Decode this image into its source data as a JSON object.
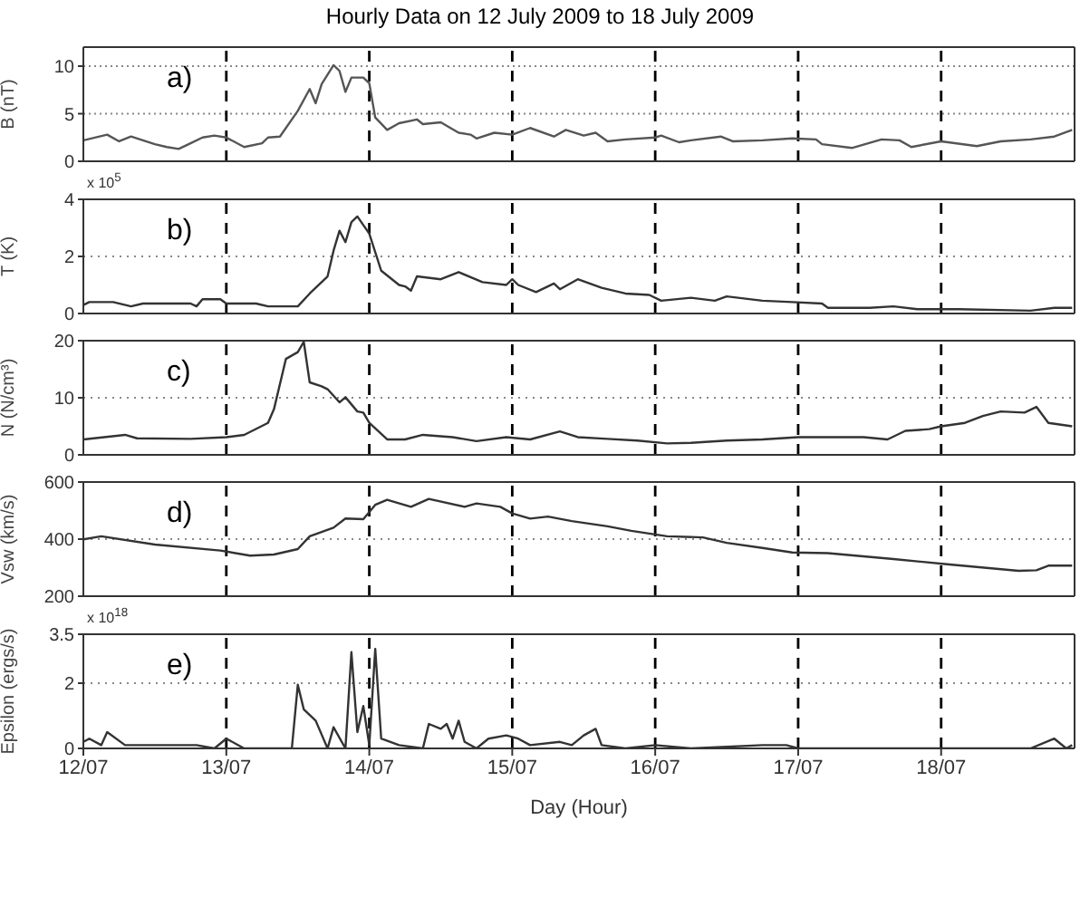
{
  "chart_data": [
    {
      "type": "line",
      "title": "Hourly Data on 12 July 2009 to 18 July 2009",
      "ylabel": "B (nT)",
      "annotations": [
        "a)"
      ],
      "color": "#555555",
      "grid": "y",
      "tick_labels": "y",
      "xlim": [
        "2009-07-12T00:00",
        "2009-07-18T22:24"
      ],
      "ylim": [
        0,
        12
      ],
      "yticks": [
        0,
        5,
        10
      ],
      "ref_lines": [
        {
          "axis": "x",
          "value": "2009-07-13T00:00",
          "color": "#000000",
          "line_style": "dashed"
        },
        {
          "axis": "x",
          "value": "2009-07-14T00:00",
          "color": "#000000",
          "line_style": "dashed"
        },
        {
          "axis": "x",
          "value": "2009-07-15T00:00",
          "color": "#000000",
          "line_style": "dashed"
        },
        {
          "axis": "x",
          "value": "2009-07-16T00:00",
          "color": "#000000",
          "line_style": "dashed"
        },
        {
          "axis": "x",
          "value": "2009-07-17T00:00",
          "color": "#000000",
          "line_style": "dashed"
        },
        {
          "axis": "x",
          "value": "2009-07-18T00:00",
          "color": "#000000",
          "line_style": "dashed"
        }
      ],
      "x": [
        "2009-07-12T00:00",
        "2009-07-12T04:00",
        "2009-07-12T06:00",
        "2009-07-12T08:00",
        "2009-07-12T12:00",
        "2009-07-12T14:00",
        "2009-07-12T16:00",
        "2009-07-12T18:00",
        "2009-07-12T20:00",
        "2009-07-12T22:00",
        "2009-07-13T00:00",
        "2009-07-13T03:00",
        "2009-07-13T06:00",
        "2009-07-13T07:00",
        "2009-07-13T09:00",
        "2009-07-13T12:00",
        "2009-07-13T14:00",
        "2009-07-13T15:00",
        "2009-07-13T16:00",
        "2009-07-13T18:00",
        "2009-07-13T19:00",
        "2009-07-13T20:00",
        "2009-07-13T21:00",
        "2009-07-13T23:00",
        "2009-07-14T00:00",
        "2009-07-14T01:00",
        "2009-07-14T03:00",
        "2009-07-14T05:00",
        "2009-07-14T08:00",
        "2009-07-14T09:00",
        "2009-07-14T12:00",
        "2009-07-14T15:00",
        "2009-07-14T17:00",
        "2009-07-14T18:00",
        "2009-07-14T21:00",
        "2009-07-15T00:00",
        "2009-07-15T03:00",
        "2009-07-15T07:00",
        "2009-07-15T09:00",
        "2009-07-15T12:00",
        "2009-07-15T14:00",
        "2009-07-15T16:00",
        "2009-07-15T19:00",
        "2009-07-16T00:00",
        "2009-07-16T01:00",
        "2009-07-16T04:00",
        "2009-07-16T06:00",
        "2009-07-16T11:00",
        "2009-07-16T13:00",
        "2009-07-16T18:00",
        "2009-07-16T23:00",
        "2009-07-17T03:00",
        "2009-07-17T04:00",
        "2009-07-17T09:00",
        "2009-07-17T14:00",
        "2009-07-17T17:00",
        "2009-07-17T19:00",
        "2009-07-18T00:00",
        "2009-07-18T06:00",
        "2009-07-18T10:00",
        "2009-07-18T15:00",
        "2009-07-18T19:00",
        "2009-07-18T22:00"
      ],
      "values": [
        2.2,
        2.8,
        2.1,
        2.6,
        1.8,
        1.5,
        1.3,
        1.9,
        2.5,
        2.7,
        2.5,
        1.5,
        1.9,
        2.5,
        2.6,
        5.3,
        7.6,
        6.1,
        8.1,
        10.1,
        9.5,
        7.3,
        8.8,
        8.8,
        8.2,
        4.6,
        3.3,
        4.0,
        4.4,
        3.9,
        4.1,
        3.0,
        2.8,
        2.4,
        3.0,
        2.8,
        3.5,
        2.6,
        3.3,
        2.7,
        3.0,
        2.1,
        2.3,
        2.5,
        2.7,
        2.0,
        2.2,
        2.6,
        2.1,
        2.2,
        2.4,
        2.3,
        1.8,
        1.4,
        2.3,
        2.2,
        1.5,
        2.1,
        1.6,
        2.1,
        2.3,
        2.6,
        3.3
      ]
    },
    {
      "type": "line",
      "ylabel": "T (K)",
      "annotations": [
        "b)",
        "x 10$^{5}$"
      ],
      "color": "#333333",
      "tick_labels": "y",
      "xlim": [
        "2009-07-12T00:00",
        "2009-07-18T22:24"
      ],
      "ylim": [
        0,
        4
      ],
      "yticks": [
        0,
        2,
        4
      ],
      "ref_lines": [
        {
          "axis": "y",
          "value": 2,
          "color": "#888888",
          "line_style": "dotted"
        },
        {
          "axis": "x",
          "value": "2009-07-13T00:00",
          "color": "#000000",
          "line_style": "dashed"
        },
        {
          "axis": "x",
          "value": "2009-07-14T00:00",
          "color": "#000000",
          "line_style": "dashed"
        },
        {
          "axis": "x",
          "value": "2009-07-15T00:00",
          "color": "#000000",
          "line_style": "dashed"
        },
        {
          "axis": "x",
          "value": "2009-07-16T00:00",
          "color": "#000000",
          "line_style": "dashed"
        },
        {
          "axis": "x",
          "value": "2009-07-17T00:00",
          "color": "#000000",
          "line_style": "dashed"
        },
        {
          "axis": "x",
          "value": "2009-07-18T00:00",
          "color": "#000000",
          "line_style": "dashed"
        }
      ],
      "x": [
        "2009-07-12T00:00",
        "2009-07-12T01:00",
        "2009-07-12T05:00",
        "2009-07-12T08:00",
        "2009-07-12T10:00",
        "2009-07-12T18:00",
        "2009-07-12T19:00",
        "2009-07-12T20:00",
        "2009-07-12T23:00",
        "2009-07-13T00:00",
        "2009-07-13T05:00",
        "2009-07-13T07:00",
        "2009-07-13T12:00",
        "2009-07-13T14:00",
        "2009-07-13T17:00",
        "2009-07-13T18:00",
        "2009-07-13T19:00",
        "2009-07-13T20:00",
        "2009-07-13T21:00",
        "2009-07-13T22:00",
        "2009-07-13T23:00",
        "2009-07-14T00:00",
        "2009-07-14T02:00",
        "2009-07-14T05:00",
        "2009-07-14T06:00",
        "2009-07-14T07:00",
        "2009-07-14T08:00",
        "2009-07-14T12:00",
        "2009-07-14T15:00",
        "2009-07-14T19:00",
        "2009-07-14T23:00",
        "2009-07-15T00:00",
        "2009-07-15T01:00",
        "2009-07-15T04:00",
        "2009-07-15T07:00",
        "2009-07-15T08:00",
        "2009-07-15T11:00",
        "2009-07-15T15:00",
        "2009-07-15T19:00",
        "2009-07-15T23:00",
        "2009-07-16T01:00",
        "2009-07-16T06:00",
        "2009-07-16T10:00",
        "2009-07-16T12:00",
        "2009-07-16T18:00",
        "2009-07-16T23:00",
        "2009-07-17T04:00",
        "2009-07-17T05:00",
        "2009-07-17T12:00",
        "2009-07-17T16:00",
        "2009-07-17T20:00",
        "2009-07-18T03:00",
        "2009-07-18T15:00",
        "2009-07-18T19:00",
        "2009-07-18T22:00"
      ],
      "values": [
        0.3,
        0.4,
        0.4,
        0.25,
        0.35,
        0.35,
        0.25,
        0.5,
        0.5,
        0.35,
        0.35,
        0.25,
        0.25,
        0.7,
        1.3,
        2.2,
        2.9,
        2.5,
        3.2,
        3.4,
        3.1,
        2.8,
        1.5,
        1.0,
        0.95,
        0.8,
        1.3,
        1.2,
        1.45,
        1.1,
        1.0,
        1.2,
        1.0,
        0.75,
        1.05,
        0.85,
        1.2,
        0.9,
        0.7,
        0.65,
        0.45,
        0.55,
        0.45,
        0.6,
        0.45,
        0.4,
        0.35,
        0.2,
        0.2,
        0.25,
        0.15,
        0.15,
        0.1,
        0.2,
        0.2
      ]
    },
    {
      "type": "line",
      "ylabel": "N (N/cm³)",
      "annotations": [
        "c)"
      ],
      "color": "#333333",
      "tick_labels": "y",
      "xlim": [
        "2009-07-12T00:00",
        "2009-07-18T22:24"
      ],
      "ylim": [
        0,
        20
      ],
      "yticks": [
        0,
        10,
        20
      ],
      "ref_lines": [
        {
          "axis": "y",
          "value": 10,
          "color": "#888888",
          "line_style": "dotted"
        },
        {
          "axis": "x",
          "value": "2009-07-13T00:00",
          "color": "#000000",
          "line_style": "dashed"
        },
        {
          "axis": "x",
          "value": "2009-07-14T00:00",
          "color": "#000000",
          "line_style": "dashed"
        },
        {
          "axis": "x",
          "value": "2009-07-15T00:00",
          "color": "#000000",
          "line_style": "dashed"
        },
        {
          "axis": "x",
          "value": "2009-07-16T00:00",
          "color": "#000000",
          "line_style": "dashed"
        },
        {
          "axis": "x",
          "value": "2009-07-17T00:00",
          "color": "#000000",
          "line_style": "dashed"
        },
        {
          "axis": "x",
          "value": "2009-07-18T00:00",
          "color": "#000000",
          "line_style": "dashed"
        }
      ],
      "x": [
        "2009-07-12T00:00",
        "2009-07-12T07:00",
        "2009-07-12T09:00",
        "2009-07-12T18:00",
        "2009-07-13T00:00",
        "2009-07-13T03:00",
        "2009-07-13T07:00",
        "2009-07-13T08:00",
        "2009-07-13T10:00",
        "2009-07-13T12:00",
        "2009-07-13T13:00",
        "2009-07-13T14:00",
        "2009-07-13T16:00",
        "2009-07-13T17:00",
        "2009-07-13T19:00",
        "2009-07-13T20:00",
        "2009-07-13T22:00",
        "2009-07-13T23:00",
        "2009-07-14T00:00",
        "2009-07-14T03:00",
        "2009-07-14T06:00",
        "2009-07-14T09:00",
        "2009-07-14T14:00",
        "2009-07-14T18:00",
        "2009-07-14T23:00",
        "2009-07-15T03:00",
        "2009-07-15T08:00",
        "2009-07-15T11:00",
        "2009-07-15T16:00",
        "2009-07-15T21:00",
        "2009-07-16T02:00",
        "2009-07-16T06:00",
        "2009-07-16T12:00",
        "2009-07-16T18:00",
        "2009-07-17T00:00",
        "2009-07-17T11:00",
        "2009-07-17T15:00",
        "2009-07-17T18:00",
        "2009-07-17T22:00",
        "2009-07-18T00:00",
        "2009-07-18T04:00",
        "2009-07-18T07:00",
        "2009-07-18T10:00",
        "2009-07-18T14:00",
        "2009-07-18T16:00",
        "2009-07-18T18:00",
        "2009-07-18T22:00"
      ],
      "values": [
        2.7,
        3.5,
        2.9,
        2.8,
        3.1,
        3.5,
        5.6,
        8,
        16.8,
        18,
        19.8,
        12.7,
        12,
        11.5,
        9.2,
        10.1,
        7.6,
        7.4,
        5.6,
        2.7,
        2.7,
        3.5,
        3.1,
        2.4,
        3.1,
        2.7,
        4.1,
        3.1,
        2.8,
        2.5,
        2,
        2.1,
        2.5,
        2.7,
        3.1,
        3.1,
        2.7,
        4.2,
        4.5,
        5,
        5.6,
        6.8,
        7.6,
        7.4,
        8.4,
        5.6,
        5
      ]
    },
    {
      "type": "line",
      "ylabel": "Vsw (km/s)",
      "annotations": [
        "d)"
      ],
      "color": "#333333",
      "tick_labels": "y",
      "xlim": [
        "2009-07-12T00:00",
        "2009-07-18T22:24"
      ],
      "ylim": [
        200,
        600
      ],
      "yticks": [
        200,
        400,
        600
      ],
      "ref_lines": [
        {
          "axis": "y",
          "value": 400,
          "color": "#888888",
          "line_style": "dotted"
        },
        {
          "axis": "x",
          "value": "2009-07-13T00:00",
          "color": "#000000",
          "line_style": "dashed"
        },
        {
          "axis": "x",
          "value": "2009-07-14T00:00",
          "color": "#000000",
          "line_style": "dashed"
        },
        {
          "axis": "x",
          "value": "2009-07-15T00:00",
          "color": "#000000",
          "line_style": "dashed"
        },
        {
          "axis": "x",
          "value": "2009-07-16T00:00",
          "color": "#000000",
          "line_style": "dashed"
        },
        {
          "axis": "x",
          "value": "2009-07-17T00:00",
          "color": "#000000",
          "line_style": "dashed"
        },
        {
          "axis": "x",
          "value": "2009-07-18T00:00",
          "color": "#000000",
          "line_style": "dashed"
        }
      ],
      "x": [
        "2009-07-12T00:00",
        "2009-07-12T03:00",
        "2009-07-12T12:00",
        "2009-07-12T23:00",
        "2009-07-13T04:00",
        "2009-07-13T08:00",
        "2009-07-13T12:00",
        "2009-07-13T14:00",
        "2009-07-13T18:00",
        "2009-07-13T20:00",
        "2009-07-13T23:00",
        "2009-07-14T01:00",
        "2009-07-14T03:00",
        "2009-07-14T07:00",
        "2009-07-14T10:00",
        "2009-07-14T16:00",
        "2009-07-14T18:00",
        "2009-07-14T22:00",
        "2009-07-15T00:00",
        "2009-07-15T03:00",
        "2009-07-15T06:00",
        "2009-07-15T10:00",
        "2009-07-15T16:00",
        "2009-07-15T20:00",
        "2009-07-16T02:00",
        "2009-07-16T08:00",
        "2009-07-16T12:00",
        "2009-07-16T18:00",
        "2009-07-16T23:00",
        "2009-07-17T05:00",
        "2009-07-17T16:00",
        "2009-07-18T01:00",
        "2009-07-18T13:00",
        "2009-07-18T16:00",
        "2009-07-18T18:00",
        "2009-07-18T22:00"
      ],
      "values": [
        399,
        410,
        381,
        360,
        342,
        346,
        365,
        410,
        440,
        472,
        470,
        520,
        538,
        513,
        541,
        513,
        525,
        513,
        490,
        472,
        479,
        463,
        445,
        429,
        410,
        406,
        387,
        369,
        353,
        351,
        330,
        312,
        289,
        291,
        307,
        307
      ]
    },
    {
      "type": "line",
      "ylabel": "Epsilon (ergs/s)",
      "xlabel": "Day (Hour)",
      "annotations": [
        "e)",
        "x 10$^{18}$"
      ],
      "color": "#333333",
      "xlim": [
        "2009-07-12T00:00",
        "2009-07-18T22:24"
      ],
      "xticks": [
        {
          "value": "2009-07-12T00:00",
          "label": "12/07"
        },
        {
          "value": "2009-07-13T00:00",
          "label": "13/07"
        },
        {
          "value": "2009-07-14T00:00",
          "label": "14/07"
        },
        {
          "value": "2009-07-15T00:00",
          "label": "15/07"
        },
        {
          "value": "2009-07-16T00:00",
          "label": "16/07"
        },
        {
          "value": "2009-07-17T00:00",
          "label": "17/07"
        },
        {
          "value": "2009-07-18T00:00",
          "label": "18/07"
        }
      ],
      "ylim": [
        0,
        3.5
      ],
      "yticks": [
        0,
        2,
        3.5
      ],
      "ref_lines": [
        {
          "axis": "y",
          "value": 2,
          "color": "#888888",
          "line_style": "dotted"
        },
        {
          "axis": "x",
          "value": "2009-07-13T00:00",
          "color": "#000000",
          "line_style": "dashed"
        },
        {
          "axis": "x",
          "value": "2009-07-14T00:00",
          "color": "#000000",
          "line_style": "dashed"
        },
        {
          "axis": "x",
          "value": "2009-07-15T00:00",
          "color": "#000000",
          "line_style": "dashed"
        },
        {
          "axis": "x",
          "value": "2009-07-16T00:00",
          "color": "#000000",
          "line_style": "dashed"
        },
        {
          "axis": "x",
          "value": "2009-07-17T00:00",
          "color": "#000000",
          "line_style": "dashed"
        },
        {
          "axis": "x",
          "value": "2009-07-18T00:00",
          "color": "#000000",
          "line_style": "dashed"
        }
      ],
      "x": [
        "2009-07-12T00:00",
        "2009-07-12T01:00",
        "2009-07-12T03:00",
        "2009-07-12T04:00",
        "2009-07-12T07:00",
        "2009-07-12T12:00",
        "2009-07-12T19:00",
        "2009-07-12T22:00",
        "2009-07-13T00:00",
        "2009-07-13T03:00",
        "2009-07-13T11:00",
        "2009-07-13T12:00",
        "2009-07-13T13:00",
        "2009-07-13T15:00",
        "2009-07-13T17:00",
        "2009-07-13T18:00",
        "2009-07-13T20:00",
        "2009-07-13T21:00",
        "2009-07-13T22:00",
        "2009-07-13T23:00",
        "2009-07-14T00:00",
        "2009-07-14T01:00",
        "2009-07-14T02:00",
        "2009-07-14T05:00",
        "2009-07-14T09:00",
        "2009-07-14T10:00",
        "2009-07-14T12:00",
        "2009-07-14T13:00",
        "2009-07-14T14:00",
        "2009-07-14T15:00",
        "2009-07-14T16:00",
        "2009-07-14T18:00",
        "2009-07-14T20:00",
        "2009-07-14T23:00",
        "2009-07-15T01:00",
        "2009-07-15T03:00",
        "2009-07-15T08:00",
        "2009-07-15T10:00",
        "2009-07-15T12:00",
        "2009-07-15T14:00",
        "2009-07-15T15:00",
        "2009-07-15T19:00",
        "2009-07-16T00:00",
        "2009-07-16T06:00",
        "2009-07-16T18:00",
        "2009-07-16T22:00",
        "2009-07-17T00:00",
        "2009-07-18T15:00",
        "2009-07-18T19:00",
        "2009-07-18T21:00",
        "2009-07-18T22:00"
      ],
      "values": [
        0.2,
        0.3,
        0.1,
        0.5,
        0.1,
        0.1,
        0.1,
        0,
        0.3,
        0,
        0,
        1.95,
        1.2,
        0.85,
        0,
        0.65,
        0,
        2.95,
        0.5,
        1.3,
        0.1,
        3.05,
        0.3,
        0.1,
        0,
        0.75,
        0.6,
        0.75,
        0.3,
        0.85,
        0.2,
        0,
        0.3,
        0.4,
        0.3,
        0.1,
        0.2,
        0.1,
        0.4,
        0.6,
        0.1,
        0,
        0.1,
        0,
        0.1,
        0.1,
        0,
        0,
        0.3,
        0,
        0.1
      ]
    }
  ]
}
